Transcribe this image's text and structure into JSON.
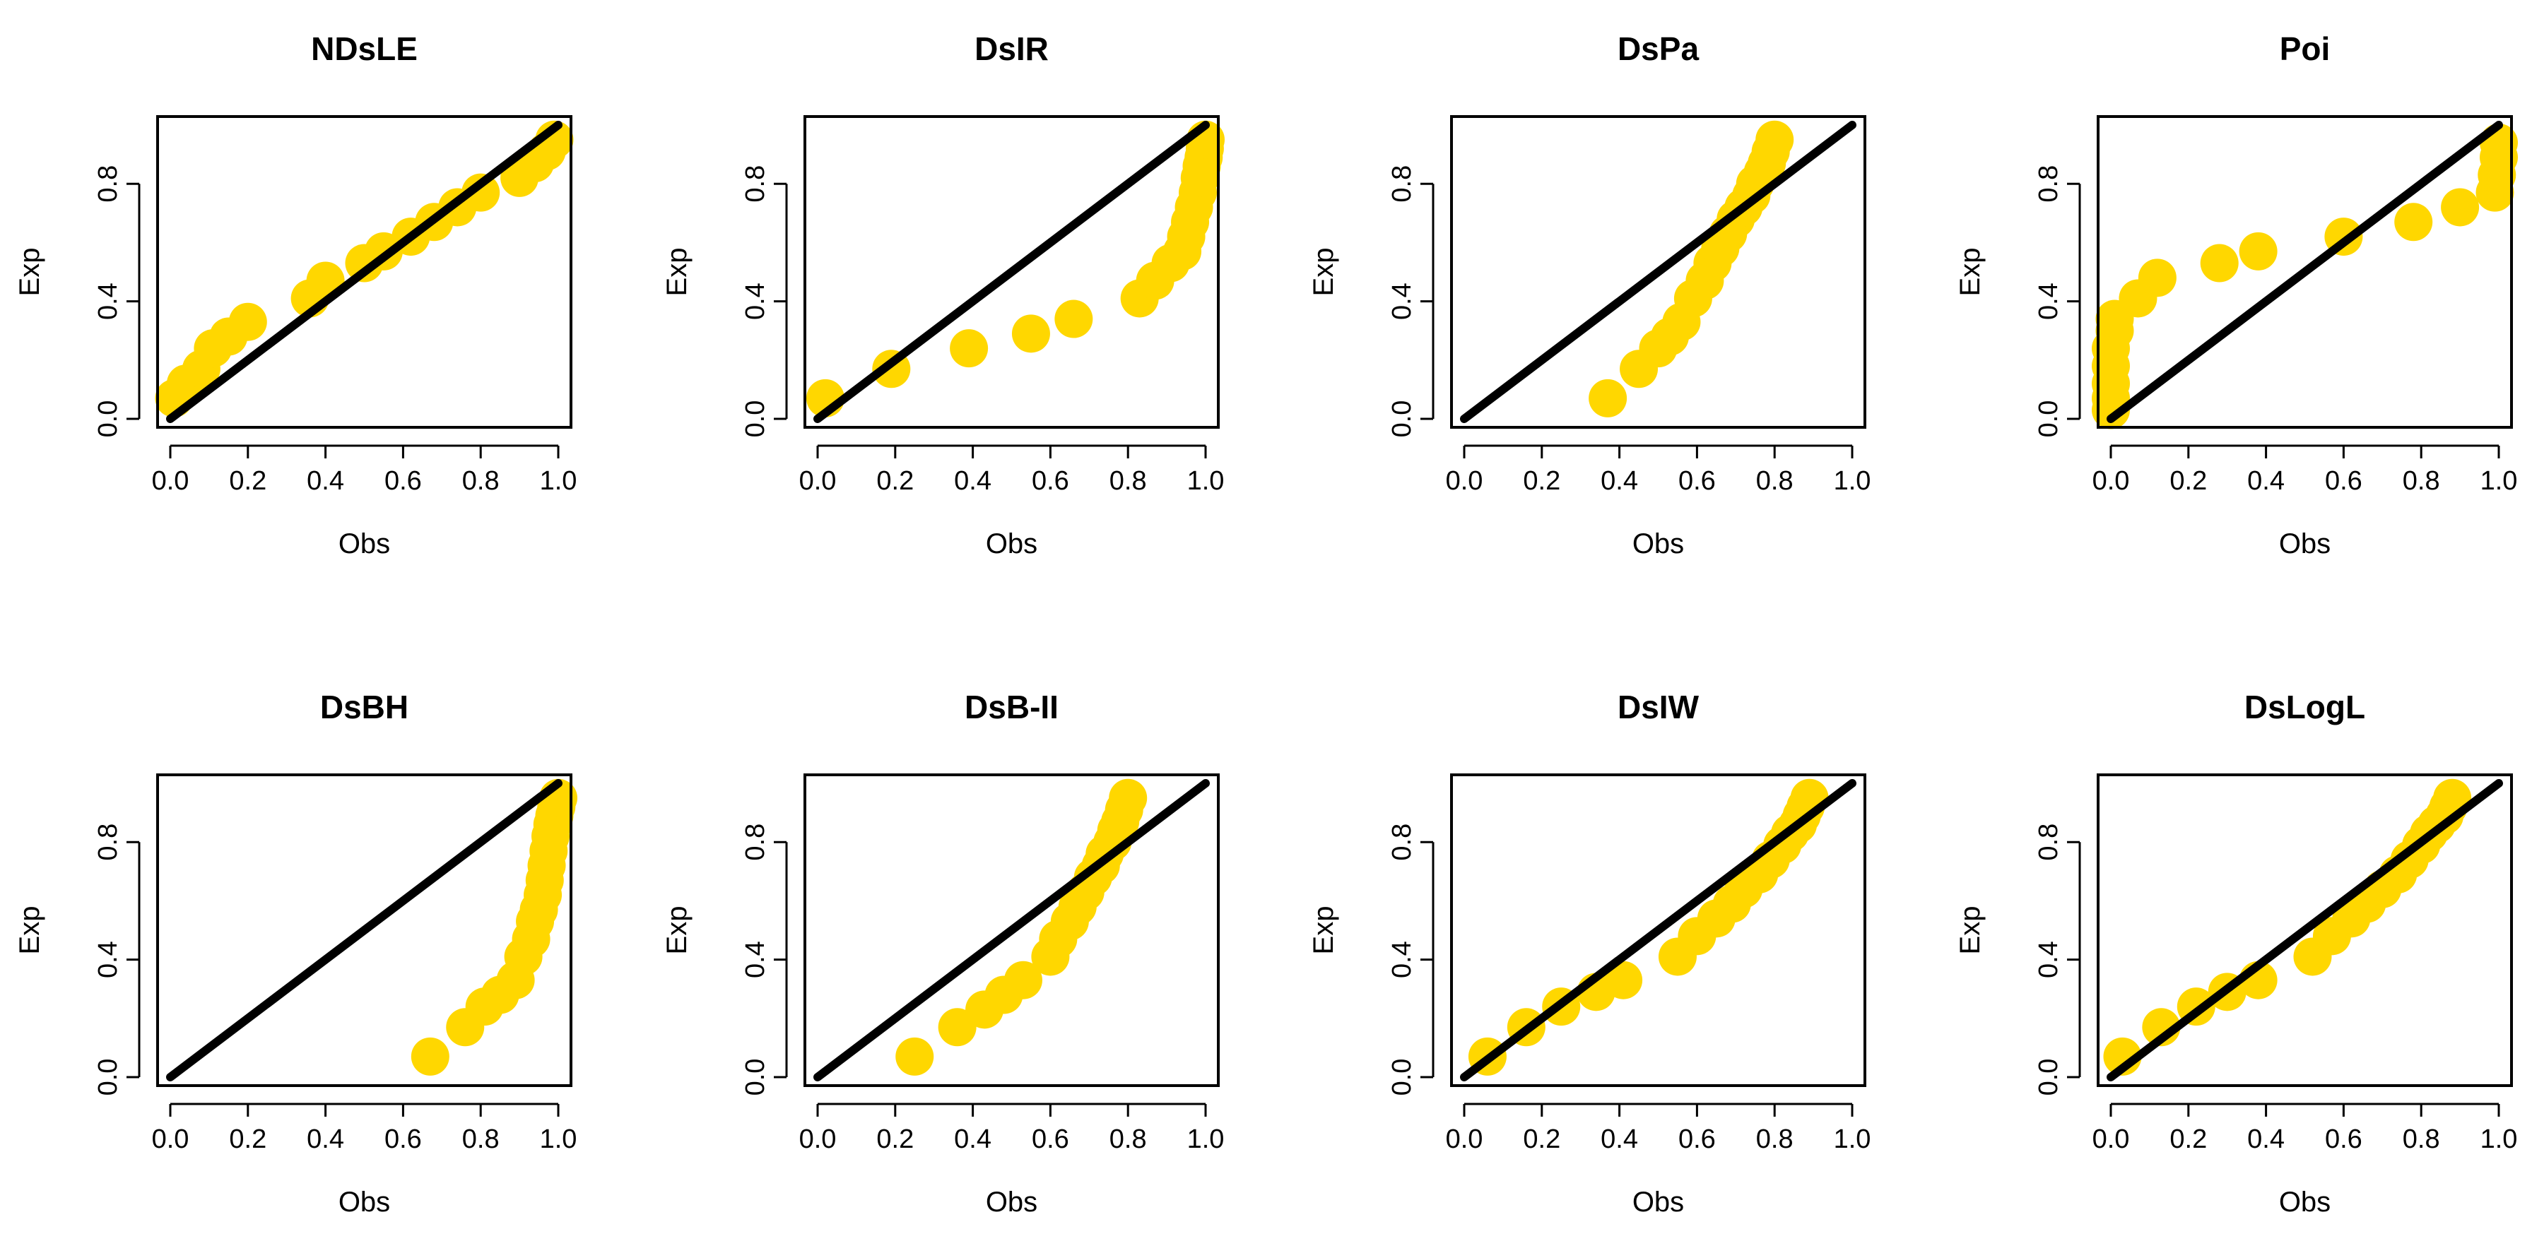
{
  "figure": {
    "colors": {
      "point": "#FFD700",
      "line": "#000000",
      "background": "#ffffff"
    }
  },
  "chart_data": [
    {
      "type": "scatter",
      "title": "NDsLE",
      "xlabel": "Obs",
      "ylabel": "Exp",
      "xlim": [
        0,
        1
      ],
      "ylim": [
        0,
        1
      ],
      "xticks": [
        "0.0",
        "0.2",
        "0.4",
        "0.6",
        "0.8",
        "1.0"
      ],
      "yticks": [
        "0.0",
        "0.4",
        "0.8"
      ],
      "x": [
        0.01,
        0.04,
        0.08,
        0.11,
        0.15,
        0.2,
        0.36,
        0.4,
        0.5,
        0.55,
        0.62,
        0.68,
        0.74,
        0.8,
        0.9,
        0.94,
        0.97,
        0.99
      ],
      "y": [
        0.07,
        0.12,
        0.17,
        0.24,
        0.28,
        0.33,
        0.41,
        0.47,
        0.53,
        0.57,
        0.62,
        0.67,
        0.72,
        0.77,
        0.82,
        0.87,
        0.91,
        0.95
      ],
      "reference_line": {
        "x": [
          0,
          1
        ],
        "y": [
          0,
          1
        ]
      }
    },
    {
      "type": "scatter",
      "title": "DsIR",
      "xlabel": "Obs",
      "ylabel": "Exp",
      "xlim": [
        0,
        1
      ],
      "ylim": [
        0,
        1
      ],
      "xticks": [
        "0.0",
        "0.2",
        "0.4",
        "0.6",
        "0.8",
        "1.0"
      ],
      "yticks": [
        "0.0",
        "0.4",
        "0.8"
      ],
      "x": [
        0.02,
        0.19,
        0.39,
        0.55,
        0.66,
        0.83,
        0.87,
        0.91,
        0.94,
        0.95,
        0.96,
        0.97,
        0.98,
        0.985,
        0.99,
        0.995,
        0.998,
        1.0
      ],
      "y": [
        0.07,
        0.17,
        0.24,
        0.29,
        0.34,
        0.41,
        0.47,
        0.53,
        0.57,
        0.62,
        0.67,
        0.72,
        0.77,
        0.82,
        0.86,
        0.89,
        0.92,
        0.95
      ],
      "reference_line": {
        "x": [
          0,
          1
        ],
        "y": [
          0,
          1
        ]
      }
    },
    {
      "type": "scatter",
      "title": "DsPa",
      "xlabel": "Obs",
      "ylabel": "Exp",
      "xlim": [
        0,
        1
      ],
      "ylim": [
        0,
        1
      ],
      "xticks": [
        "0.0",
        "0.2",
        "0.4",
        "0.6",
        "0.8",
        "1.0"
      ],
      "yticks": [
        "0.0",
        "0.4",
        "0.8"
      ],
      "x": [
        0.37,
        0.45,
        0.5,
        0.53,
        0.56,
        0.59,
        0.62,
        0.64,
        0.66,
        0.68,
        0.7,
        0.72,
        0.74,
        0.75,
        0.77,
        0.78,
        0.79,
        0.8
      ],
      "y": [
        0.07,
        0.17,
        0.24,
        0.28,
        0.33,
        0.41,
        0.47,
        0.53,
        0.58,
        0.63,
        0.68,
        0.72,
        0.76,
        0.8,
        0.84,
        0.87,
        0.91,
        0.95
      ],
      "reference_line": {
        "x": [
          0,
          1
        ],
        "y": [
          0,
          1
        ]
      }
    },
    {
      "type": "scatter",
      "title": "Poi",
      "xlabel": "Obs",
      "ylabel": "Exp",
      "xlim": [
        0,
        1
      ],
      "ylim": [
        0,
        1
      ],
      "xticks": [
        "0.0",
        "0.2",
        "0.4",
        "0.6",
        "0.8",
        "1.0"
      ],
      "yticks": [
        "0.0",
        "0.4",
        "0.8"
      ],
      "x": [
        0.0,
        0.0,
        0.0,
        0.0,
        0.0,
        0.01,
        0.01,
        0.07,
        0.12,
        0.28,
        0.38,
        0.6,
        0.78,
        0.9,
        0.99,
        0.995,
        1.0,
        1.0
      ],
      "y": [
        0.03,
        0.07,
        0.12,
        0.18,
        0.24,
        0.3,
        0.34,
        0.41,
        0.48,
        0.53,
        0.57,
        0.62,
        0.67,
        0.72,
        0.77,
        0.83,
        0.89,
        0.94
      ],
      "reference_line": {
        "x": [
          0,
          1
        ],
        "y": [
          0,
          1
        ]
      }
    },
    {
      "type": "scatter",
      "title": "DsBH",
      "xlabel": "Obs",
      "ylabel": "Exp",
      "xlim": [
        0,
        1
      ],
      "ylim": [
        0,
        1
      ],
      "xticks": [
        "0.0",
        "0.2",
        "0.4",
        "0.6",
        "0.8",
        "1.0"
      ],
      "yticks": [
        "0.0",
        "0.4",
        "0.8"
      ],
      "x": [
        0.67,
        0.76,
        0.81,
        0.85,
        0.89,
        0.91,
        0.93,
        0.94,
        0.95,
        0.96,
        0.965,
        0.97,
        0.975,
        0.98,
        0.985,
        0.99,
        0.995,
        1.0
      ],
      "y": [
        0.07,
        0.17,
        0.24,
        0.28,
        0.33,
        0.41,
        0.47,
        0.53,
        0.57,
        0.62,
        0.67,
        0.72,
        0.77,
        0.82,
        0.86,
        0.89,
        0.92,
        0.95
      ],
      "reference_line": {
        "x": [
          0,
          1
        ],
        "y": [
          0,
          1
        ]
      }
    },
    {
      "type": "scatter",
      "title": "DsB-II",
      "xlabel": "Obs",
      "ylabel": "Exp",
      "xlim": [
        0,
        1
      ],
      "ylim": [
        0,
        1
      ],
      "xticks": [
        "0.0",
        "0.2",
        "0.4",
        "0.6",
        "0.8",
        "1.0"
      ],
      "yticks": [
        "0.0",
        "0.4",
        "0.8"
      ],
      "x": [
        0.25,
        0.36,
        0.43,
        0.48,
        0.53,
        0.6,
        0.62,
        0.65,
        0.67,
        0.69,
        0.71,
        0.73,
        0.74,
        0.76,
        0.77,
        0.78,
        0.79,
        0.8
      ],
      "y": [
        0.07,
        0.17,
        0.23,
        0.28,
        0.33,
        0.41,
        0.47,
        0.53,
        0.58,
        0.63,
        0.68,
        0.72,
        0.76,
        0.8,
        0.84,
        0.87,
        0.91,
        0.95
      ],
      "reference_line": {
        "x": [
          0,
          1
        ],
        "y": [
          0,
          1
        ]
      }
    },
    {
      "type": "scatter",
      "title": "DsIW",
      "xlabel": "Obs",
      "ylabel": "Exp",
      "xlim": [
        0,
        1
      ],
      "ylim": [
        0,
        1
      ],
      "xticks": [
        "0.0",
        "0.2",
        "0.4",
        "0.6",
        "0.8",
        "1.0"
      ],
      "yticks": [
        "0.0",
        "0.4",
        "0.8"
      ],
      "x": [
        0.06,
        0.16,
        0.25,
        0.34,
        0.41,
        0.55,
        0.6,
        0.65,
        0.69,
        0.72,
        0.76,
        0.79,
        0.82,
        0.84,
        0.86,
        0.87,
        0.88,
        0.89
      ],
      "y": [
        0.07,
        0.17,
        0.24,
        0.29,
        0.33,
        0.41,
        0.48,
        0.54,
        0.59,
        0.64,
        0.69,
        0.74,
        0.79,
        0.83,
        0.86,
        0.89,
        0.92,
        0.95
      ],
      "reference_line": {
        "x": [
          0,
          1
        ],
        "y": [
          0,
          1
        ]
      }
    },
    {
      "type": "scatter",
      "title": "DsLogL",
      "xlabel": "Obs",
      "ylabel": "Exp",
      "xlim": [
        0,
        1
      ],
      "ylim": [
        0,
        1
      ],
      "xticks": [
        "0.0",
        "0.2",
        "0.4",
        "0.6",
        "0.8",
        "1.0"
      ],
      "yticks": [
        "0.0",
        "0.4",
        "0.8"
      ],
      "x": [
        0.03,
        0.13,
        0.22,
        0.3,
        0.38,
        0.52,
        0.57,
        0.62,
        0.66,
        0.7,
        0.74,
        0.77,
        0.8,
        0.82,
        0.84,
        0.86,
        0.87,
        0.88
      ],
      "y": [
        0.07,
        0.17,
        0.24,
        0.29,
        0.33,
        0.41,
        0.48,
        0.54,
        0.59,
        0.64,
        0.69,
        0.74,
        0.79,
        0.83,
        0.86,
        0.89,
        0.92,
        0.95
      ],
      "reference_line": {
        "x": [
          0,
          1
        ],
        "y": [
          0,
          1
        ]
      }
    }
  ]
}
